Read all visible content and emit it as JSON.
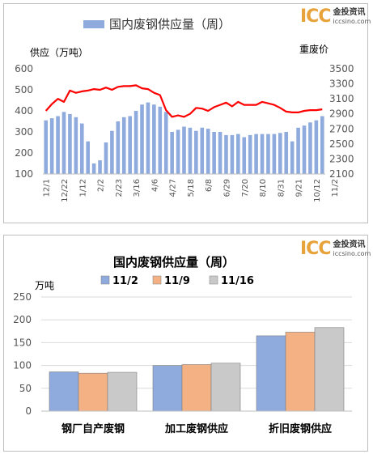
{
  "logo": {
    "mark": "ICC",
    "name_cn": "金投资讯",
    "reg": "®",
    "url": "iccsino.com"
  },
  "chart_data": [
    {
      "type": "bar+line",
      "title": "国内废钢供应量（周）",
      "legend": [
        "国内废钢供应量（周）"
      ],
      "ylabel_left": "供应（万吨）",
      "ylabel_right": "重废价",
      "ylim_left": [
        100,
        600
      ],
      "yticks_left": [
        100,
        200,
        300,
        400,
        500,
        600
      ],
      "ylim_right": [
        2100,
        3500
      ],
      "yticks_right": [
        2100,
        2300,
        2500,
        2700,
        2900,
        3100,
        3300,
        3500
      ],
      "x_tick_labels": [
        "12/1",
        "12/22",
        "1/12",
        "2/2",
        "2/23",
        "3/16",
        "4/6",
        "4/27",
        "5/18",
        "6/8",
        "6/29",
        "7/20",
        "8/10",
        "8/31",
        "9/21",
        "10/12",
        "11/2"
      ],
      "bar_values": [
        355,
        365,
        375,
        395,
        385,
        370,
        340,
        255,
        150,
        165,
        250,
        305,
        350,
        370,
        375,
        400,
        430,
        440,
        430,
        420,
        395,
        300,
        310,
        325,
        320,
        305,
        320,
        315,
        300,
        300,
        285,
        285,
        290,
        275,
        285,
        290,
        290,
        290,
        290,
        295,
        300,
        255,
        320,
        330,
        345,
        355,
        375
      ],
      "line_values": [
        2940,
        3030,
        3100,
        3060,
        3210,
        3180,
        3200,
        3210,
        3230,
        3220,
        3250,
        3220,
        3260,
        3270,
        3270,
        3280,
        3240,
        3230,
        3180,
        3150,
        2950,
        2860,
        2880,
        2860,
        2900,
        2980,
        2970,
        2940,
        2990,
        3020,
        3050,
        3000,
        3060,
        3020,
        3020,
        3020,
        3060,
        3040,
        3020,
        2980,
        2930,
        2920,
        2920,
        2940,
        2950,
        2950,
        2960
      ],
      "bar_color": "#8faadc",
      "line_color": "#ff0000"
    },
    {
      "type": "bar",
      "title": "国内废钢供应量（周）",
      "ylabel": "万吨",
      "ylim": [
        0,
        250
      ],
      "yticks": [
        0,
        50,
        100,
        150,
        200,
        250
      ],
      "categories": [
        "钢厂自产废钢",
        "加工废钢供应",
        "折旧废钢供应"
      ],
      "series": [
        {
          "name": "11/2",
          "values": [
            86,
            100,
            165
          ],
          "color": "#8faadc"
        },
        {
          "name": "11/9",
          "values": [
            83,
            102,
            173
          ],
          "color": "#f4b183"
        },
        {
          "name": "11/16",
          "values": [
            85,
            105,
            183
          ],
          "color": "#c9c9c9"
        }
      ]
    }
  ]
}
